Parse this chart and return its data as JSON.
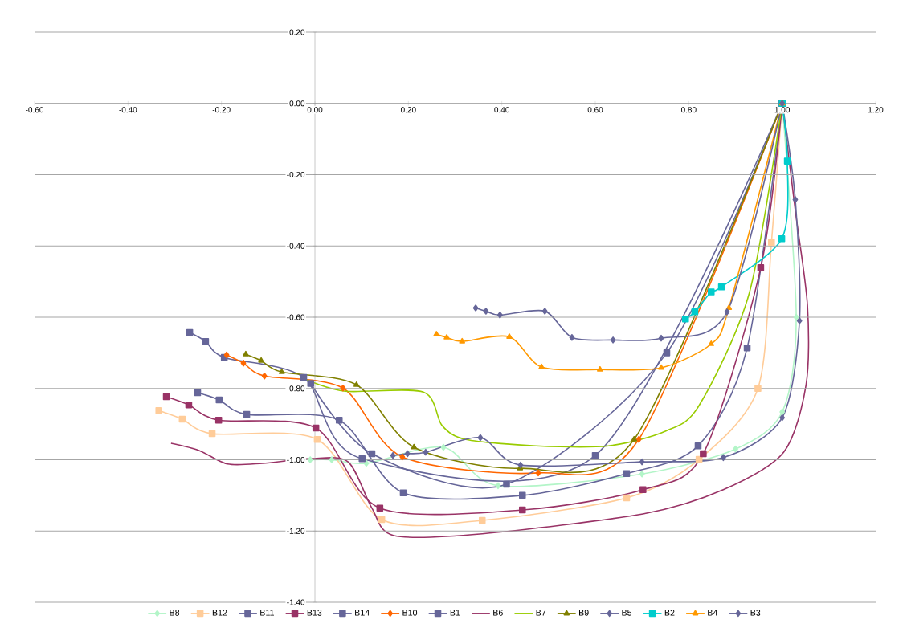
{
  "chart_data": {
    "type": "line",
    "grid": "y",
    "legend": "bottom",
    "xlim": [
      -0.6,
      1.2
    ],
    "ylim": [
      -1.4,
      0.2
    ],
    "xticks": [
      {
        "value": -0.6,
        "label": "-0.60"
      },
      {
        "value": -0.4,
        "label": "-0.40"
      },
      {
        "value": -0.2,
        "label": "-0.20"
      },
      {
        "value": 0,
        "label": "0.00"
      },
      {
        "value": 0.2,
        "label": "0.20"
      },
      {
        "value": 0.4,
        "label": "0.40"
      },
      {
        "value": 0.6,
        "label": "0.60"
      },
      {
        "value": 0.8,
        "label": "0.80"
      },
      {
        "value": 1.0,
        "label": "1.00"
      },
      {
        "value": 1.2,
        "label": "1.20"
      }
    ],
    "yticks": [
      {
        "value": -1.4,
        "label": "-1.40"
      },
      {
        "value": -1.2,
        "label": "-1.20"
      },
      {
        "value": -1.0,
        "label": "-1.00"
      },
      {
        "value": -0.8,
        "label": "-0.80"
      },
      {
        "value": -0.6,
        "label": "-0.60"
      },
      {
        "value": -0.4,
        "label": "-0.40"
      },
      {
        "value": -0.2,
        "label": "-0.20"
      },
      {
        "value": 0,
        "label": "0.00"
      },
      {
        "value": 0.2,
        "label": "0.20"
      }
    ],
    "series": [
      {
        "name": "B8",
        "color": "#b3f5c8",
        "marker": "diamond",
        "x": [
          -0.01,
          0.036,
          0.11,
          0.275,
          0.392,
          0.7,
          0.9,
          1.0,
          1.03,
          1.0
        ],
        "values": [
          -1.0,
          -1.0,
          -1.01,
          -0.965,
          -1.073,
          -1.04,
          -0.97,
          -0.866,
          -0.6,
          0.0
        ]
      },
      {
        "name": "B12",
        "color": "#ffcc99",
        "marker": "square",
        "x": [
          -0.334,
          -0.284,
          -0.22,
          0.005,
          0.143,
          0.358,
          0.667,
          0.822,
          0.948,
          0.977,
          1.0
        ],
        "values": [
          -0.862,
          -0.886,
          -0.927,
          -0.943,
          -1.168,
          -1.17,
          -1.107,
          -0.999,
          -0.8,
          -0.39,
          0.0
        ]
      },
      {
        "name": "B11",
        "color": "#666699",
        "marker": "square",
        "x": [
          -0.251,
          -0.205,
          -0.146,
          0.052,
          0.189,
          0.444,
          0.667,
          0.82,
          0.925,
          1.0
        ],
        "values": [
          -0.812,
          -0.832,
          -0.873,
          -0.889,
          -1.093,
          -1.1,
          -1.039,
          -0.961,
          -0.686,
          0.0
        ]
      },
      {
        "name": "B13",
        "color": "#993366",
        "marker": "square",
        "x": [
          -0.318,
          -0.27,
          -0.206,
          0.002,
          0.139,
          0.444,
          0.702,
          0.831,
          0.954,
          1.0
        ],
        "values": [
          -0.823,
          -0.846,
          -0.889,
          -0.911,
          -1.136,
          -1.141,
          -1.084,
          -0.983,
          -0.461,
          0.0
        ]
      },
      {
        "name": "B14",
        "color": "#666699",
        "marker": "square",
        "x": [
          -0.268,
          -0.234,
          -0.194,
          -0.024,
          0.101,
          0.6,
          1.0
        ],
        "values": [
          -0.643,
          -0.668,
          -0.713,
          -0.769,
          -0.997,
          -0.988,
          0.0
        ]
      },
      {
        "name": "B10",
        "color": "#ff6600",
        "marker": "diamond",
        "x": [
          -0.189,
          -0.153,
          -0.108,
          0.06,
          0.187,
          0.478,
          0.693,
          1.0
        ],
        "values": [
          -0.706,
          -0.729,
          -0.765,
          -0.799,
          -0.992,
          -1.037,
          -0.943,
          0.0
        ]
      },
      {
        "name": "B1",
        "color": "#666699",
        "marker": "square",
        "x": [
          -0.009,
          0.122,
          0.41,
          0.753,
          1.0
        ],
        "values": [
          -0.786,
          -0.983,
          -1.069,
          -0.7,
          0.0
        ]
      },
      {
        "name": "B6",
        "color": "#993366",
        "marker": "none",
        "x": [
          -0.308,
          -0.248,
          -0.187,
          -0.112,
          -0.009,
          0.071,
          0.122,
          0.169,
          0.358,
          0.702,
          0.874,
          1.003,
          1.051,
          1.054,
          1.028,
          1.0
        ],
        "values": [
          -0.954,
          -0.974,
          -1.012,
          -1.01,
          -0.997,
          -1.006,
          -1.136,
          -1.213,
          -1.208,
          -1.152,
          -1.084,
          -0.979,
          -0.79,
          -0.567,
          -0.3,
          0.0
        ]
      },
      {
        "name": "B7",
        "color": "#99cc00",
        "marker": "none",
        "x": [
          -0.021,
          0.065,
          0.232,
          0.272,
          0.323,
          0.473,
          0.628,
          0.75,
          0.822,
          0.93,
          1.0
        ],
        "values": [
          -0.774,
          -0.808,
          -0.81,
          -0.904,
          -0.943,
          -0.961,
          -0.961,
          -0.92,
          -0.848,
          -0.53,
          0.0
        ]
      },
      {
        "name": "B9",
        "color": "#808000",
        "marker": "triangle",
        "x": [
          -0.148,
          -0.115,
          -0.071,
          0.089,
          0.212,
          0.439,
          0.683,
          1.0
        ],
        "values": [
          -0.704,
          -0.722,
          -0.754,
          -0.79,
          -0.965,
          -1.024,
          -0.943,
          0.0
        ]
      },
      {
        "name": "B5",
        "color": "#666699",
        "marker": "diamond",
        "x": [
          0.167,
          0.198,
          0.237,
          0.354,
          0.44,
          0.7,
          0.874,
          1.0,
          1.037,
          1.028,
          1.0
        ],
        "values": [
          -0.988,
          -0.983,
          -0.979,
          -0.938,
          -1.015,
          -1.006,
          -0.994,
          -0.882,
          -0.61,
          -0.27,
          0.0
        ]
      },
      {
        "name": "B2",
        "color": "#00cccc",
        "marker": "square",
        "x": [
          0.793,
          0.813,
          0.848,
          0.87,
          0.999,
          1.011,
          1.0
        ],
        "values": [
          -0.605,
          -0.585,
          -0.529,
          -0.515,
          -0.38,
          -0.162,
          0.0
        ]
      },
      {
        "name": "B4",
        "color": "#ff9900",
        "marker": "triangle",
        "x": [
          0.26,
          0.282,
          0.315,
          0.416,
          0.485,
          0.61,
          0.741,
          0.848,
          0.886,
          1.0
        ],
        "values": [
          -0.648,
          -0.657,
          -0.668,
          -0.655,
          -0.74,
          -0.747,
          -0.742,
          -0.675,
          -0.574,
          0.0
        ]
      },
      {
        "name": "B3",
        "color": "#666699",
        "marker": "diamond",
        "x": [
          0.344,
          0.366,
          0.396,
          0.492,
          0.55,
          0.638,
          0.741,
          0.882,
          1.0
        ],
        "values": [
          -0.574,
          -0.583,
          -0.594,
          -0.583,
          -0.657,
          -0.664,
          -0.659,
          -0.585,
          0.0
        ]
      }
    ]
  }
}
